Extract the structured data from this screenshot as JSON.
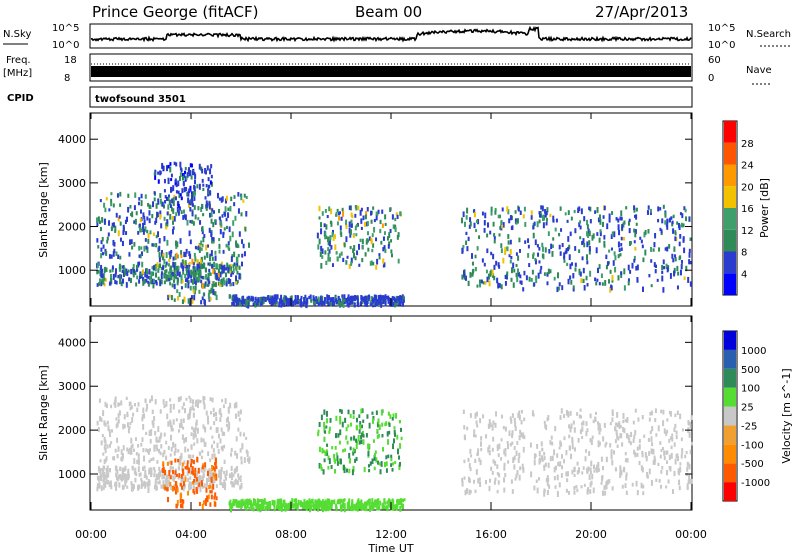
{
  "header": {
    "station": "Prince George (fitACF)",
    "beam": "Beam 00",
    "date": "27/Apr/2013"
  },
  "top_panels": {
    "nsky_label": "N.Sky",
    "nsky_top": "10^5",
    "nsky_bottom": "10^0",
    "nsearch_label": "N.Search",
    "nsearch_top": "10^5",
    "nsearch_bottom": "10^0",
    "freq_label": "Freq.",
    "freq_unit": "[MHz]",
    "freq_top": "18",
    "freq_bottom": "8",
    "nave_label": "Nave",
    "nave_top": "60",
    "nave_bottom": "0",
    "cpid_label": "CPID",
    "cpid_value": "twofsound 3501"
  },
  "colors": {
    "trace": "#000000",
    "power_scale": [
      "#0000ff",
      "#2a3bcf",
      "#2e8b57",
      "#3f9f6b",
      "#f2c200",
      "#ff9900",
      "#ff5500",
      "#ff0000"
    ],
    "velocity_scale": [
      "#ff0000",
      "#ff5a00",
      "#ff8c00",
      "#f0a030",
      "#c8c8c8",
      "#55dd33",
      "#2e8b57",
      "#2a5fb0",
      "#0000dd"
    ]
  },
  "chart_data": [
    {
      "type": "heatmap",
      "panel": "power",
      "ylabel": "Slant Range [km]",
      "ylim": [
        180,
        4600
      ],
      "yticks": [
        "1000",
        "2000",
        "3000",
        "4000"
      ],
      "ytick_values": [
        1000,
        2000,
        3000,
        4000
      ],
      "colorbar": {
        "label": "Power [dB]",
        "range": [
          0,
          32
        ],
        "ticks": [
          "4",
          "8",
          "12",
          "16",
          "20",
          "24",
          "28"
        ],
        "tick_values": [
          4,
          8,
          12,
          16,
          20,
          24,
          28
        ]
      },
      "echo_regions": [
        {
          "region": "near-range band",
          "t_start": 0.2,
          "t_end": 6.0,
          "range_start": 700,
          "range_end": 1200,
          "peak_power": 22
        },
        {
          "region": "arc 1",
          "t_start": 0.2,
          "t_end": 6.3,
          "range_start": 1300,
          "range_end": 2800,
          "peak_power": 22
        },
        {
          "region": "arc 2",
          "t_start": 2.5,
          "t_end": 4.8,
          "range_start": 2500,
          "range_end": 3500,
          "peak_power": 14
        },
        {
          "region": "morning patch",
          "t_start": 2.8,
          "t_end": 5.0,
          "range_start": 300,
          "range_end": 1400,
          "peak_power": 26
        },
        {
          "region": "mid-day patch",
          "t_start": 9.0,
          "t_end": 12.4,
          "range_start": 1100,
          "range_end": 2500,
          "peak_power": 24
        },
        {
          "region": "low-range echoes",
          "t_start": 5.5,
          "t_end": 12.5,
          "range_start": 250,
          "range_end": 450,
          "peak_power": 16
        },
        {
          "region": "evening bands",
          "t_start": 14.8,
          "t_end": 24.0,
          "range_start": 600,
          "range_end": 2500,
          "peak_power": 20
        }
      ]
    },
    {
      "type": "heatmap",
      "panel": "velocity",
      "ylabel": "Slant Range [km]",
      "ylim": [
        180,
        4600
      ],
      "yticks": [
        "1000",
        "2000",
        "3000",
        "4000"
      ],
      "ytick_values": [
        1000,
        2000,
        3000,
        4000
      ],
      "xlabel": "Time UT",
      "xticks": [
        "00:00",
        "04:00",
        "08:00",
        "12:00",
        "16:00",
        "20:00",
        "00:00"
      ],
      "xtick_values": [
        0,
        4,
        8,
        12,
        16,
        20,
        24
      ],
      "colorbar": {
        "label": "Velocity [m s^-1]",
        "ticks": [
          "1000",
          "500",
          "100",
          "25",
          "-25",
          "-100",
          "-500",
          "-1000"
        ]
      },
      "echo_regions": [
        {
          "region": "arc 1 (ground scatter)",
          "t_start": 0.2,
          "t_end": 6.3,
          "range_start": 1300,
          "range_end": 2800,
          "velocity": 0
        },
        {
          "region": "near-range band",
          "t_start": 0.2,
          "t_end": 6.0,
          "range_start": 700,
          "range_end": 1200,
          "velocity": 0
        },
        {
          "region": "morning patch",
          "t_start": 2.8,
          "t_end": 5.0,
          "range_start": 300,
          "range_end": 1400,
          "velocity": -150
        },
        {
          "region": "mid-day patch",
          "t_start": 9.0,
          "t_end": 12.4,
          "range_start": 1100,
          "range_end": 2500,
          "velocity": 100
        },
        {
          "region": "low-range echoes",
          "t_start": 5.5,
          "t_end": 12.5,
          "range_start": 250,
          "range_end": 450,
          "velocity": 60
        },
        {
          "region": "evening bands",
          "t_start": 14.8,
          "t_end": 24.0,
          "range_start": 600,
          "range_end": 2500,
          "velocity": 0
        }
      ]
    }
  ]
}
